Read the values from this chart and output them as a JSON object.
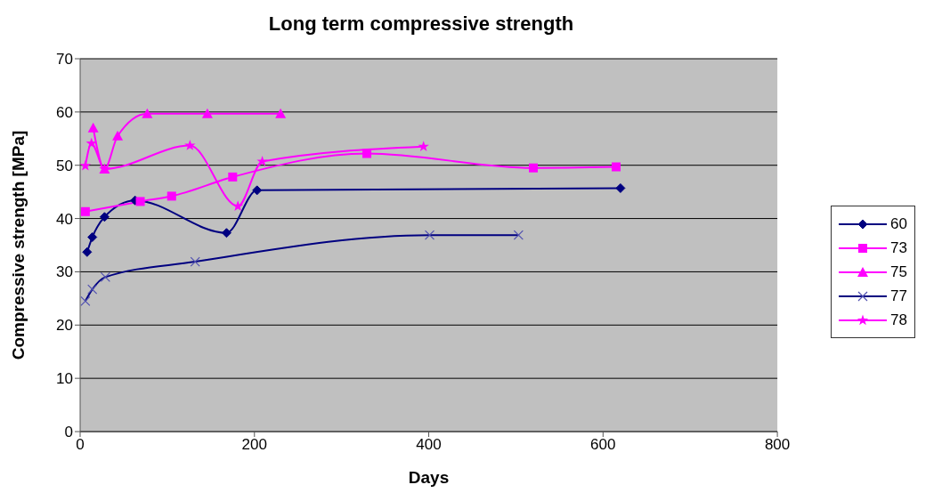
{
  "chart_data": {
    "type": "line",
    "title": "Long term compressive strength",
    "xlabel": "Days",
    "ylabel": "Compressive strength [MPa]",
    "xlim": [
      0,
      800
    ],
    "xticks": [
      0,
      200,
      400,
      600,
      800
    ],
    "ylim": [
      0,
      70
    ],
    "yticks": [
      0,
      10,
      20,
      30,
      40,
      50,
      60,
      70
    ],
    "grid": "y",
    "legend": "right",
    "line_style": "solid",
    "series": [
      {
        "name": "60",
        "color": "#000080",
        "marker": "diamond",
        "x": [
          8,
          14,
          28,
          63,
          168,
          203,
          620
        ],
        "values": [
          33.7,
          36.5,
          40.3,
          43.4,
          37.3,
          45.3,
          45.7
        ]
      },
      {
        "name": "73",
        "color": "#ff00ff",
        "marker": "square",
        "x": [
          6,
          69,
          105,
          175,
          329,
          520,
          615
        ],
        "values": [
          41.3,
          43.2,
          44.2,
          47.8,
          52.2,
          49.5,
          49.7
        ]
      },
      {
        "name": "75",
        "color": "#ff00ff",
        "marker": "triangle",
        "x": [
          15,
          28,
          43,
          77,
          146,
          230
        ],
        "values": [
          57.0,
          49.3,
          55.5,
          59.7,
          59.7,
          59.7
        ]
      },
      {
        "name": "77",
        "color": "#000080",
        "marker": "cross",
        "x": [
          6,
          14,
          29,
          132,
          401,
          503
        ],
        "values": [
          24.5,
          26.7,
          29.0,
          31.9,
          36.9,
          36.9
        ]
      },
      {
        "name": "78",
        "color": "#ff00ff",
        "marker": "star",
        "x": [
          6,
          13,
          28,
          126,
          181,
          209,
          394
        ],
        "values": [
          49.9,
          54.1,
          49.3,
          53.7,
          42.3,
          50.7,
          53.5
        ]
      }
    ]
  }
}
